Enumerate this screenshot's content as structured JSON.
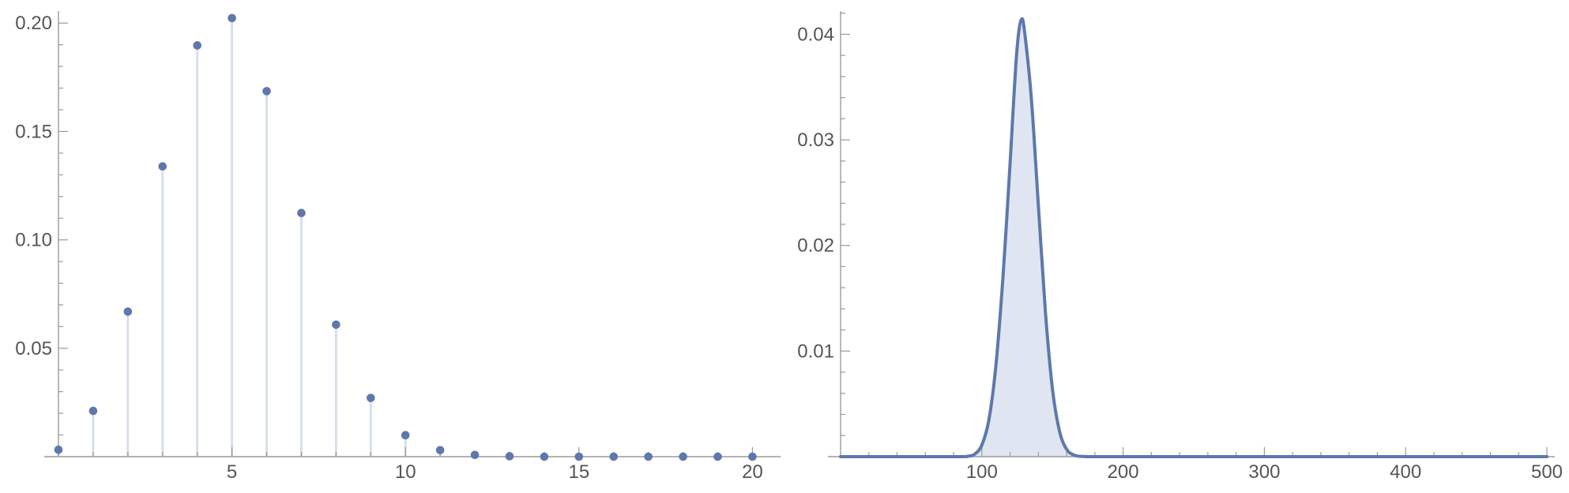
{
  "colors": {
    "series": "#5e78ac",
    "stem": "#d6dfeb",
    "fill": "#e0e6f1",
    "axis": "#9a9a9a",
    "tick_text": "#555555"
  },
  "chart_data": [
    {
      "type": "scatter",
      "style": "stem",
      "x": [
        0,
        1,
        2,
        3,
        4,
        5,
        6,
        7,
        8,
        9,
        10,
        11,
        12,
        13,
        14,
        15,
        16,
        17,
        18,
        19,
        20
      ],
      "y": [
        0.0032,
        0.0211,
        0.0669,
        0.1339,
        0.1897,
        0.2023,
        0.1686,
        0.1124,
        0.0609,
        0.0271,
        0.0099,
        0.003,
        0.0008,
        0.0002,
        0.0,
        0.0,
        0.0,
        0.0,
        0.0,
        0.0,
        0.0
      ],
      "xlim": [
        0,
        20.4
      ],
      "ylim": [
        0,
        0.207
      ],
      "x_ticks": [
        "5",
        "10",
        "15",
        "20"
      ],
      "y_ticks": [
        "0.05",
        "0.10",
        "0.15",
        "0.20"
      ],
      "xlabel": "",
      "ylabel": "",
      "grid": false
    },
    {
      "type": "area",
      "style": "filled-curve",
      "x": [
        0,
        80,
        90,
        95,
        100,
        105,
        110,
        115,
        120,
        122,
        124,
        126,
        128,
        130,
        135,
        140,
        145,
        150,
        155,
        160,
        165,
        170,
        180,
        200,
        300,
        400,
        500
      ],
      "y": [
        0,
        0,
        4e-05,
        0.00025,
        0.0011,
        0.0035,
        0.0087,
        0.0171,
        0.0278,
        0.0325,
        0.037,
        0.0401,
        0.0414,
        0.0405,
        0.034,
        0.0238,
        0.0137,
        0.0064,
        0.0024,
        0.0007,
        0.00017,
        3e-05,
        0,
        0,
        0,
        0,
        0
      ],
      "xlim": [
        0,
        500
      ],
      "ylim": [
        0,
        0.0425
      ],
      "x_ticks": [
        "100",
        "200",
        "300",
        "400",
        "500"
      ],
      "y_ticks": [
        "0.01",
        "0.02",
        "0.03",
        "0.04"
      ],
      "xlabel": "",
      "ylabel": "",
      "grid": false
    }
  ]
}
